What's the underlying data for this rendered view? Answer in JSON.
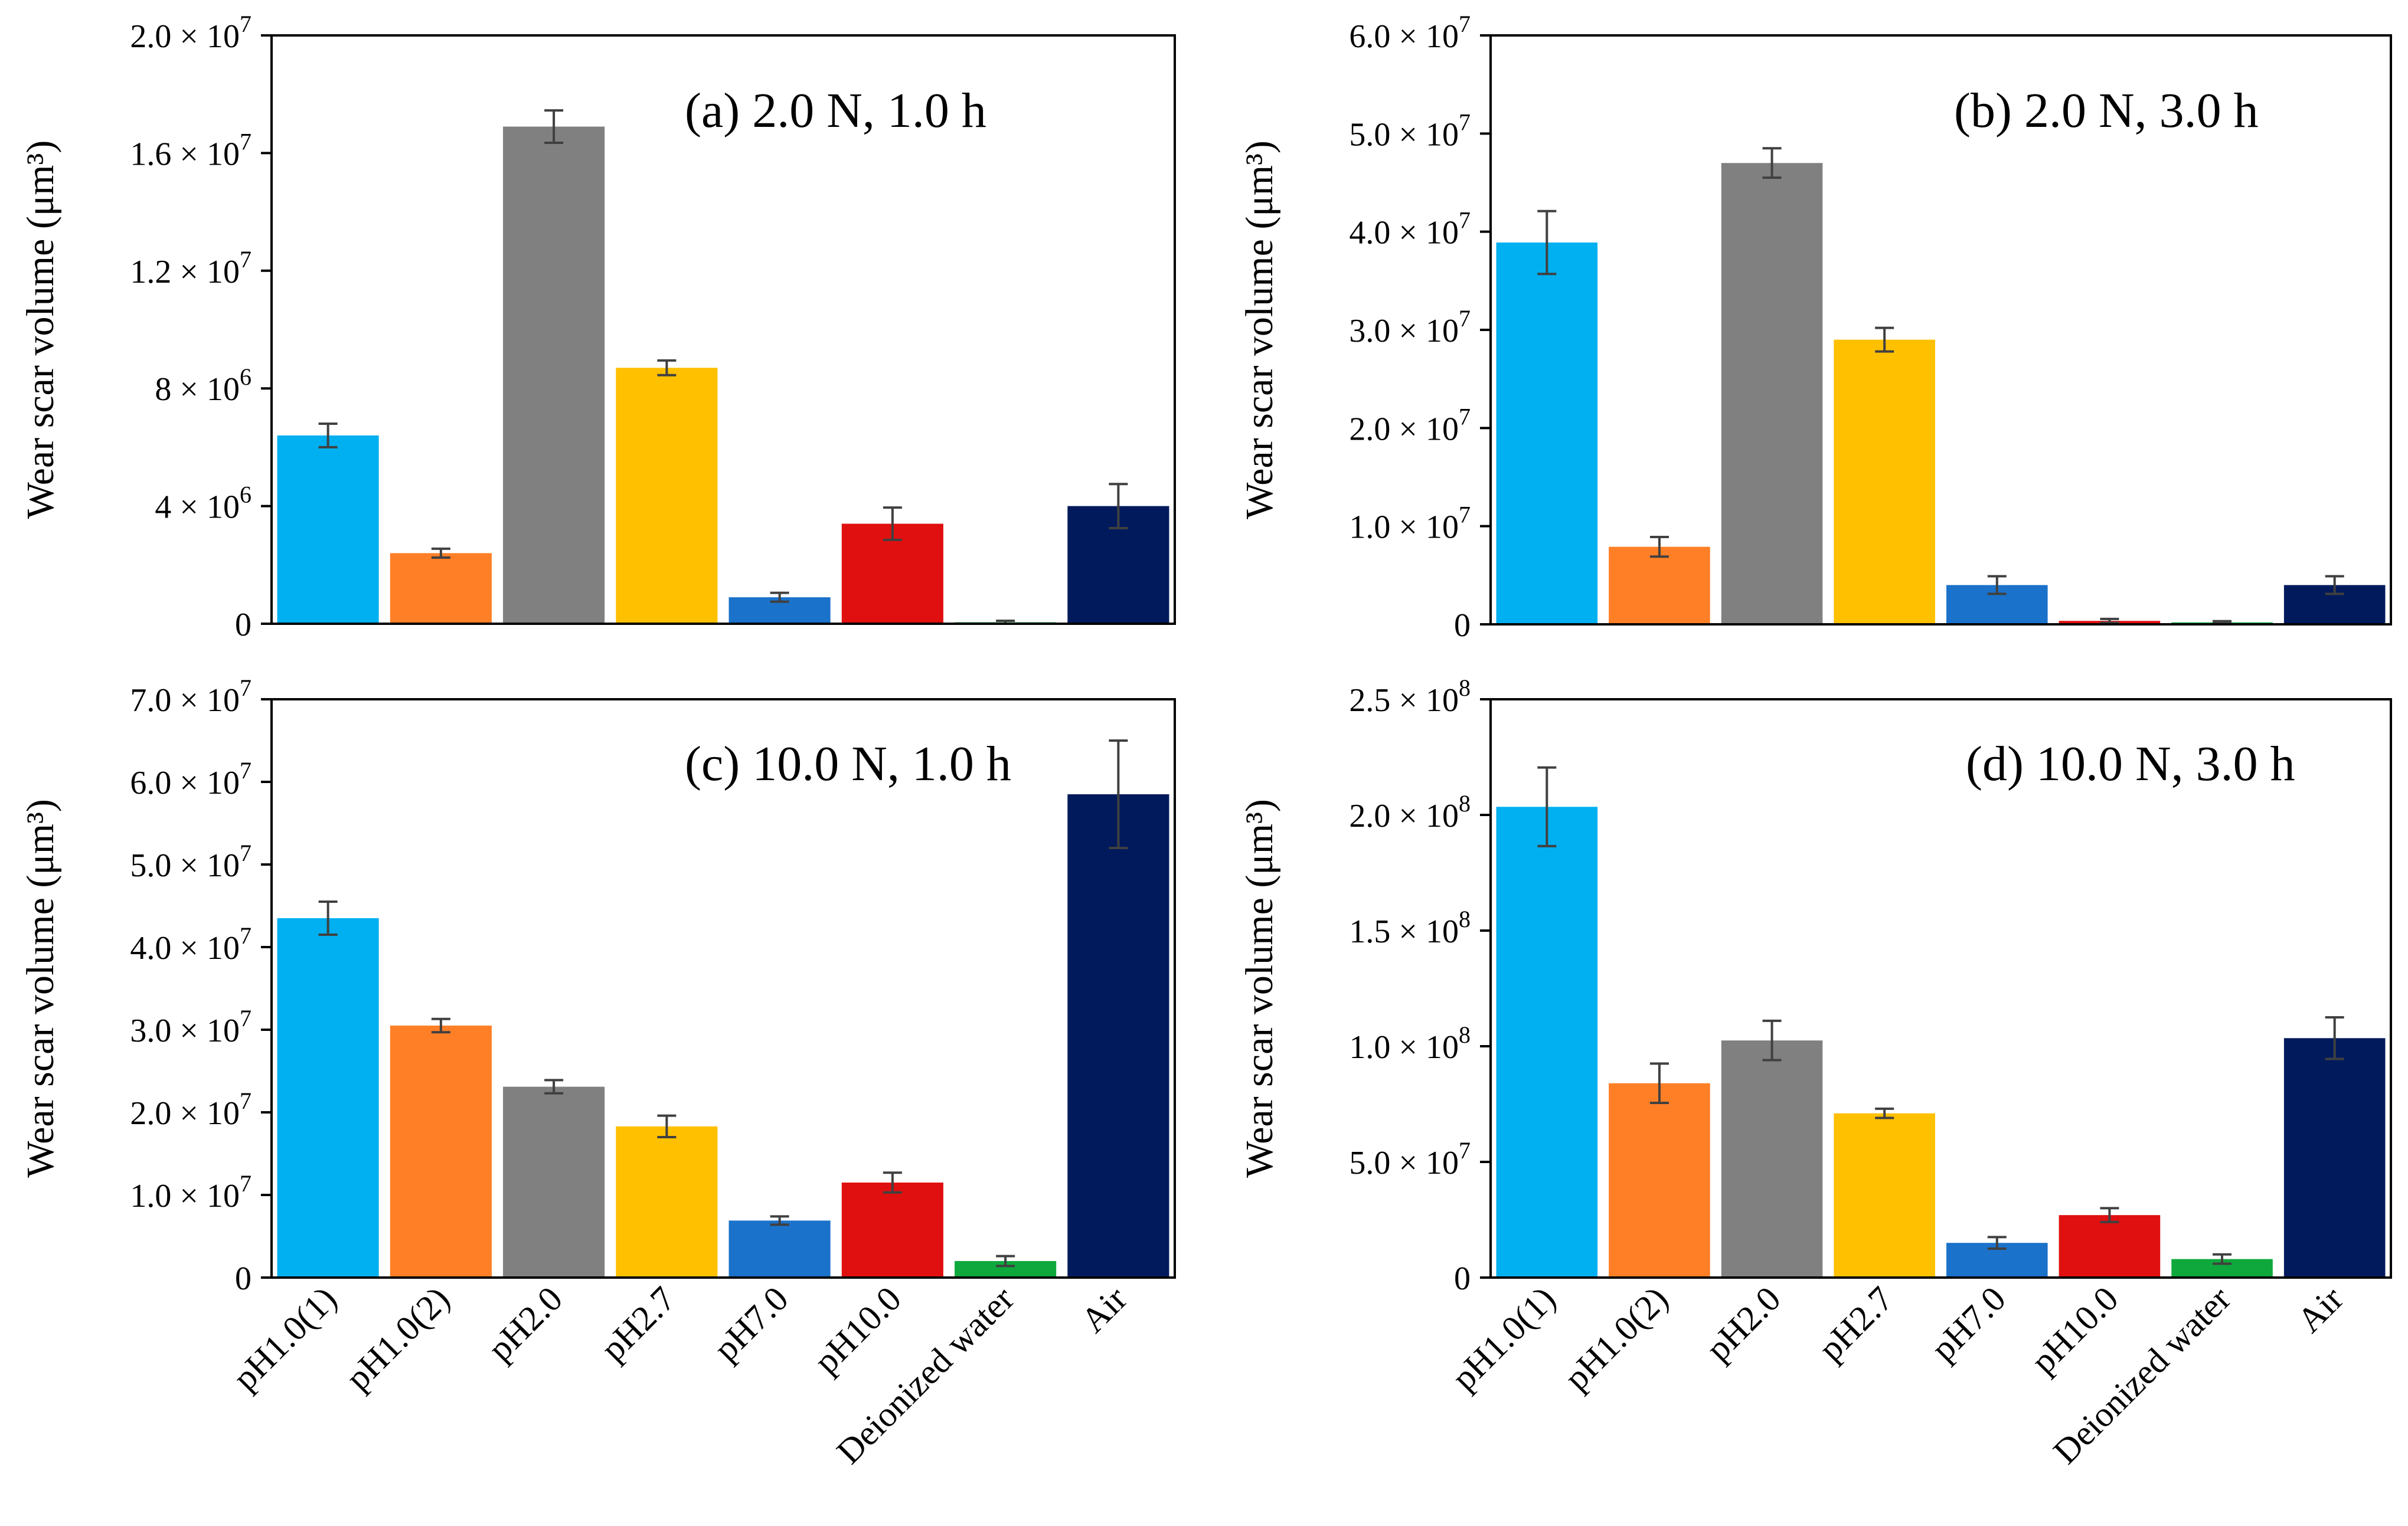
{
  "chart_data": [
    {
      "type": "bar",
      "id": "a",
      "title": "(a) 2.0 N, 1.0 h",
      "ylabel": "Wear scar volume (μm³)",
      "xlabel": "",
      "ylim": [
        0,
        20000000
      ],
      "yticks": [
        {
          "value": 0,
          "mantissa": "0",
          "exponent": ""
        },
        {
          "value": 4000000,
          "mantissa": "4 × 10",
          "exponent": "6"
        },
        {
          "value": 8000000,
          "mantissa": "8 × 10",
          "exponent": "6"
        },
        {
          "value": 12000000,
          "mantissa": "1.2 × 10",
          "exponent": "7"
        },
        {
          "value": 16000000,
          "mantissa": "1.6 × 10",
          "exponent": "7"
        },
        {
          "value": 20000000,
          "mantissa": "2.0 × 10",
          "exponent": "7"
        }
      ],
      "categories": [
        "pH1.0(1)",
        "pH1.0(2)",
        "pH2.0",
        "pH2.7",
        "pH7.0",
        "pH10.0",
        "Deionized water",
        "Air"
      ],
      "values": [
        6400000,
        2400000,
        16900000,
        8700000,
        900000,
        3400000,
        50000,
        4000000
      ],
      "errors": [
        400000,
        150000,
        550000,
        250000,
        150000,
        550000,
        50000,
        750000
      ],
      "show_category_labels": false
    },
    {
      "type": "bar",
      "id": "b",
      "title": "(b) 2.0 N, 3.0 h",
      "ylabel": "Wear scar volume (μm³)",
      "xlabel": "",
      "ylim": [
        0,
        60000000
      ],
      "yticks": [
        {
          "value": 0,
          "mantissa": "0",
          "exponent": ""
        },
        {
          "value": 10000000,
          "mantissa": "1.0 × 10",
          "exponent": "7"
        },
        {
          "value": 20000000,
          "mantissa": "2.0 × 10",
          "exponent": "7"
        },
        {
          "value": 30000000,
          "mantissa": "3.0 × 10",
          "exponent": "7"
        },
        {
          "value": 40000000,
          "mantissa": "4.0 × 10",
          "exponent": "7"
        },
        {
          "value": 50000000,
          "mantissa": "5.0 × 10",
          "exponent": "7"
        },
        {
          "value": 60000000,
          "mantissa": "6.0 × 10",
          "exponent": "7"
        }
      ],
      "categories": [
        "pH1.0(1)",
        "pH1.0(2)",
        "pH2.0",
        "pH2.7",
        "pH7.0",
        "pH10.0",
        "Deionized water",
        "Air"
      ],
      "values": [
        38900000,
        7900000,
        47000000,
        29000000,
        4000000,
        350000,
        200000,
        4000000
      ],
      "errors": [
        3200000,
        1000000,
        1500000,
        1200000,
        900000,
        200000,
        120000,
        900000
      ],
      "show_category_labels": false
    },
    {
      "type": "bar",
      "id": "c",
      "title": "(c) 10.0 N, 1.0 h",
      "ylabel": "Wear scar volume (μm³)",
      "xlabel": "",
      "ylim": [
        0,
        70000000
      ],
      "yticks": [
        {
          "value": 0,
          "mantissa": "0",
          "exponent": ""
        },
        {
          "value": 10000000,
          "mantissa": "1.0 × 10",
          "exponent": "7"
        },
        {
          "value": 20000000,
          "mantissa": "2.0 × 10",
          "exponent": "7"
        },
        {
          "value": 30000000,
          "mantissa": "3.0 × 10",
          "exponent": "7"
        },
        {
          "value": 40000000,
          "mantissa": "4.0 × 10",
          "exponent": "7"
        },
        {
          "value": 50000000,
          "mantissa": "5.0 × 10",
          "exponent": "7"
        },
        {
          "value": 60000000,
          "mantissa": "6.0 × 10",
          "exponent": "7"
        },
        {
          "value": 70000000,
          "mantissa": "7.0 × 10",
          "exponent": "7"
        }
      ],
      "categories": [
        "pH1.0(1)",
        "pH1.0(2)",
        "pH2.0",
        "pH2.7",
        "pH7.0",
        "pH10.0",
        "Deionized water",
        "Air"
      ],
      "values": [
        43500000,
        30500000,
        23100000,
        18300000,
        6900000,
        11500000,
        2000000,
        58500000
      ],
      "errors": [
        2000000,
        800000,
        800000,
        1300000,
        500000,
        1200000,
        600000,
        6500000
      ],
      "show_category_labels": true
    },
    {
      "type": "bar",
      "id": "d",
      "title": "(d) 10.0 N, 3.0 h",
      "ylabel": "Wear scar volume (μm³)",
      "xlabel": "",
      "ylim": [
        0,
        250000000
      ],
      "yticks": [
        {
          "value": 0,
          "mantissa": "0",
          "exponent": ""
        },
        {
          "value": 50000000,
          "mantissa": "5.0 × 10",
          "exponent": "7"
        },
        {
          "value": 100000000,
          "mantissa": "1.0 × 10",
          "exponent": "8"
        },
        {
          "value": 150000000,
          "mantissa": "1.5 × 10",
          "exponent": "8"
        },
        {
          "value": 200000000,
          "mantissa": "2.0 × 10",
          "exponent": "8"
        },
        {
          "value": 250000000,
          "mantissa": "2.5 × 10",
          "exponent": "8"
        }
      ],
      "categories": [
        "pH1.0(1)",
        "pH1.0(2)",
        "pH2.0",
        "pH2.7",
        "pH7.0",
        "pH10.0",
        "Deionized water",
        "Air"
      ],
      "values": [
        203500000,
        84000000,
        102500000,
        71000000,
        15000000,
        27000000,
        8000000,
        103500000
      ],
      "errors": [
        17000000,
        8500000,
        8500000,
        2000000,
        2500000,
        3000000,
        2000000,
        9000000
      ],
      "show_category_labels": true
    }
  ],
  "colors": [
    "#00B0F0",
    "#FF7F27",
    "#808080",
    "#FFC000",
    "#1B72CA",
    "#E01010",
    "#0FA83C",
    "#001A5C"
  ]
}
